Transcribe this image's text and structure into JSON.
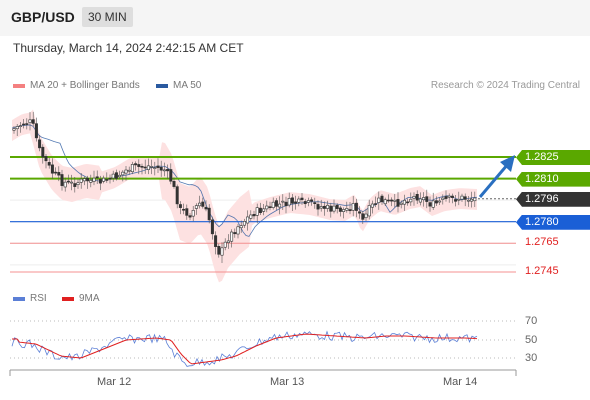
{
  "header": {
    "pair": "GBP/USD",
    "timeframe": "30 MIN"
  },
  "datetime": "Thursday, March 14, 2024 2:42:15 AM CET",
  "legend": {
    "bollinger_label": "MA 20 + Bollinger Bands",
    "ma50_label": "MA 50",
    "credit": "Research © 2024 Trading Central"
  },
  "levels": [
    {
      "label": "1.2825",
      "kind": "resistance",
      "value": 1.2825
    },
    {
      "label": "1.2810",
      "kind": "resistance",
      "value": 1.281
    },
    {
      "label": "1.2796",
      "kind": "current",
      "value": 1.2796
    },
    {
      "label": "1.2780",
      "kind": "pivot",
      "value": 1.278
    },
    {
      "label": "1.2765",
      "kind": "support",
      "value": 1.2765
    },
    {
      "label": "1.2745",
      "kind": "support",
      "value": 1.2745
    }
  ],
  "rsi": {
    "legend_rsi": "RSI",
    "legend_9ma": "9MA",
    "ticks": [
      "70",
      "50",
      "30"
    ]
  },
  "xaxis": {
    "ticks": [
      "Mar 12",
      "Mar 13",
      "Mar 14"
    ]
  },
  "colors": {
    "resistance": "#5aa800",
    "pivot": "#1a5fd6",
    "current": "#333333",
    "support": "#e02020",
    "bollinger": "#f4a6a6",
    "ma50": "#2a5aa0",
    "rsi": "#5b7fd6",
    "rsi_ma": "#e02020",
    "arrow": "#2a6fc0"
  }
}
